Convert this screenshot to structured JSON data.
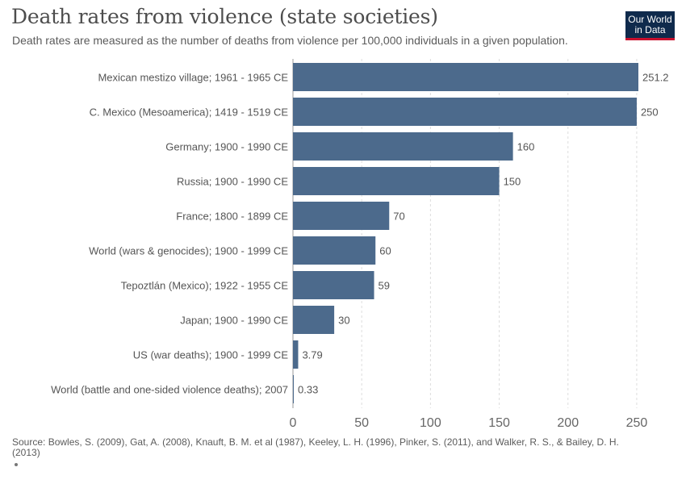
{
  "header": {
    "title": "Death rates from violence (state societies)",
    "subtitle": "Death rates are measured as the number of deaths from violence per 100,000 individuals in a given population."
  },
  "logo": {
    "line1": "Our World",
    "line2": "in Data"
  },
  "colors": {
    "bar": "#4c6a8c",
    "grid": "#dddddd",
    "logo_bg": "#0f2a4c",
    "logo_accent": "#c8102e"
  },
  "chart_data": {
    "type": "bar",
    "orientation": "horizontal",
    "categories": [
      "Mexican mestizo village; 1961 - 1965 CE",
      "C. Mexico (Mesoamerica); 1419 - 1519 CE",
      "Germany; 1900 - 1990 CE",
      "Russia; 1900 - 1990 CE",
      "France; 1800 - 1899 CE",
      "World (wars & genocides); 1900 - 1999 CE",
      "Tepoztlán (Mexico); 1922 - 1955 CE",
      "Japan; 1900 - 1990 CE",
      "US (war deaths); 1900 - 1999 CE",
      "World (battle and one-sided violence deaths); 2007"
    ],
    "values": [
      251.2,
      250,
      160,
      150,
      70,
      60,
      59,
      30,
      3.79,
      0.33
    ],
    "value_labels": [
      "251.2",
      "250",
      "160",
      "150",
      "70",
      "60",
      "59",
      "30",
      "3.79",
      "0.33"
    ],
    "xticks": [
      0,
      50,
      100,
      150,
      200,
      250
    ],
    "xlim": [
      0,
      251.2
    ],
    "grid": true
  },
  "source": "Source: Bowles, S. (2009), Gat, A. (2008), Knauft, B. M. et al (1987), Keeley, L. H. (1996), Pinker, S. (2011), and Walker, R. S., & Bailey, D. H. (2013)"
}
